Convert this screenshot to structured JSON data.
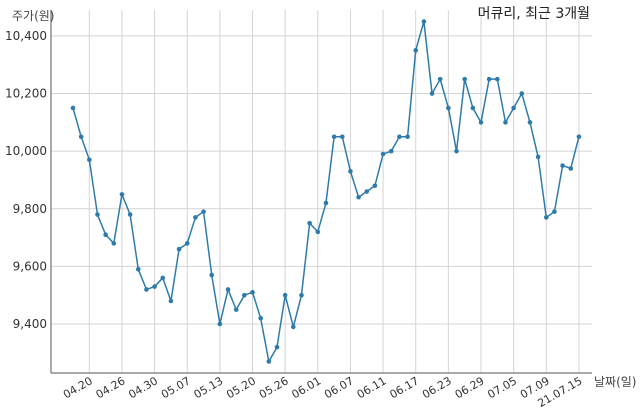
{
  "chart_data": {
    "type": "line",
    "title": "머큐리, 최근 3개월",
    "ylabel": "주가(원)",
    "xlabel": "날짜(일)",
    "ylim": [
      9230,
      10490
    ],
    "yticks": [
      9400,
      9600,
      9800,
      10000,
      10200,
      10400
    ],
    "ytick_labels": [
      "9,400",
      "9,600",
      "9,800",
      "10,000",
      "10,200",
      "10,400"
    ],
    "xtick_labels": [
      "04.20",
      "04.26",
      "04.30",
      "05.07",
      "05.13",
      "05.20",
      "05.26",
      "06.01",
      "06.07",
      "06.11",
      "06.17",
      "06.23",
      "06.29",
      "07.05",
      "07.09",
      "21.07.15"
    ],
    "xtick_index": [
      2,
      6,
      10,
      14,
      18,
      22,
      26,
      30,
      34,
      38,
      42,
      46,
      50,
      54,
      58,
      62
    ],
    "grid": true,
    "series": [
      {
        "color": "#2e7bab",
        "values": [
          10150,
          10050,
          9970,
          9780,
          9710,
          9680,
          9850,
          9780,
          9590,
          9520,
          9530,
          9560,
          9480,
          9660,
          9680,
          9770,
          9790,
          9570,
          9400,
          9520,
          9450,
          9500,
          9510,
          9420,
          9270,
          9320,
          9500,
          9390,
          9500,
          9750,
          9720,
          9820,
          10050,
          10050,
          9930,
          9840,
          9860,
          9880,
          9990,
          10000,
          10050,
          10050,
          10350,
          10450,
          10200,
          10250,
          10150,
          10000,
          10250,
          10150,
          10100,
          10250,
          10250,
          10100,
          10150,
          10200,
          10100,
          9980,
          9770,
          9790,
          9950,
          9940,
          10050
        ]
      }
    ]
  }
}
